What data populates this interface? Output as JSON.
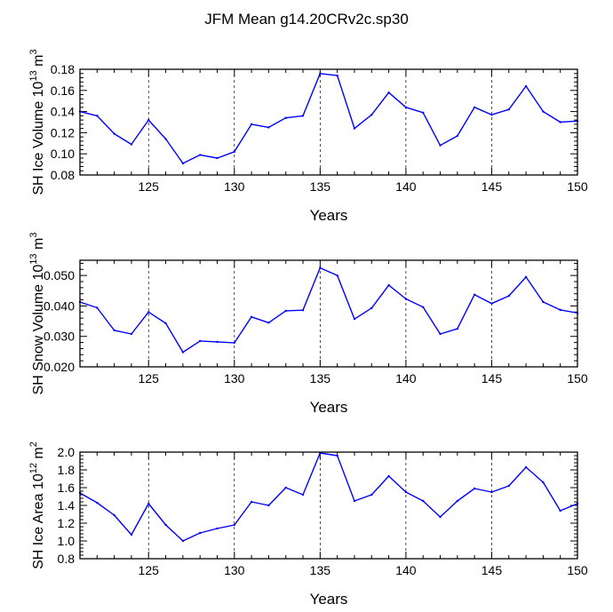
{
  "figure": {
    "title": "JFM Mean g14.20CRv2c.sp30"
  },
  "colors": {
    "line": "#0000ff",
    "axis": "#000000",
    "grid": "#000000",
    "background": "#ffffff"
  },
  "chart_data": [
    {
      "type": "line",
      "name": "ice-volume",
      "ylabel_main": "SH Ice Volume 10",
      "ylabel_exp": "13",
      "ylabel_unit": "m",
      "ylabel_unit_exp": "3",
      "xlabel": "Years",
      "xlim": [
        121,
        150
      ],
      "ylim": [
        0.08,
        0.18
      ],
      "xticks": [
        125,
        130,
        135,
        140,
        145,
        150
      ],
      "xtick_labels": [
        "125",
        "130",
        "135",
        "140",
        "145",
        "150"
      ],
      "yticks": [
        0.08,
        0.1,
        0.12,
        0.14,
        0.16,
        0.18
      ],
      "ytick_labels": [
        "0.08",
        "0.10",
        "0.12",
        "0.14",
        "0.16",
        "0.18"
      ],
      "grid": "vertical dashed at major x ticks",
      "x": [
        121,
        122,
        123,
        124,
        125,
        126,
        127,
        128,
        129,
        130,
        131,
        132,
        133,
        134,
        135,
        136,
        137,
        138,
        139,
        140,
        141,
        142,
        143,
        144,
        145,
        146,
        147,
        148,
        149,
        150
      ],
      "values": [
        0.14,
        0.136,
        0.119,
        0.109,
        0.132,
        0.114,
        0.091,
        0.099,
        0.096,
        0.102,
        0.128,
        0.125,
        0.134,
        0.136,
        0.176,
        0.174,
        0.124,
        0.137,
        0.158,
        0.144,
        0.139,
        0.108,
        0.117,
        0.144,
        0.137,
        0.142,
        0.164,
        0.14,
        0.13,
        0.131
      ]
    },
    {
      "type": "line",
      "name": "snow-volume",
      "ylabel_main": "SH Snow Volume 10",
      "ylabel_exp": "13",
      "ylabel_unit": "m",
      "ylabel_unit_exp": "3",
      "xlabel": "Years",
      "xlim": [
        121,
        150
      ],
      "ylim": [
        0.02,
        0.055
      ],
      "xticks": [
        125,
        130,
        135,
        140,
        145,
        150
      ],
      "xtick_labels": [
        "125",
        "130",
        "135",
        "140",
        "145",
        "150"
      ],
      "yticks": [
        0.02,
        0.03,
        0.04,
        0.05
      ],
      "ytick_labels": [
        "0.020",
        "0.030",
        "0.040",
        "0.050"
      ],
      "grid": "vertical dashed at major x ticks",
      "x": [
        121,
        122,
        123,
        124,
        125,
        126,
        127,
        128,
        129,
        130,
        131,
        132,
        133,
        134,
        135,
        136,
        137,
        138,
        139,
        140,
        141,
        142,
        143,
        144,
        145,
        146,
        147,
        148,
        149,
        150
      ],
      "values": [
        0.0413,
        0.0394,
        0.032,
        0.0308,
        0.038,
        0.0343,
        0.0248,
        0.0285,
        0.0282,
        0.0279,
        0.0364,
        0.0345,
        0.0384,
        0.0386,
        0.0525,
        0.05,
        0.0357,
        0.0393,
        0.0468,
        0.0423,
        0.0396,
        0.0308,
        0.0325,
        0.0437,
        0.0408,
        0.0433,
        0.0495,
        0.0413,
        0.0387,
        0.0377
      ]
    },
    {
      "type": "line",
      "name": "ice-area",
      "ylabel_main": "SH Ice Area 10",
      "ylabel_exp": "12",
      "ylabel_unit": "m",
      "ylabel_unit_exp": "2",
      "xlabel": "Years",
      "xlim": [
        121,
        150
      ],
      "ylim": [
        0.8,
        2.0
      ],
      "xticks": [
        125,
        130,
        135,
        140,
        145,
        150
      ],
      "xtick_labels": [
        "125",
        "130",
        "135",
        "140",
        "145",
        "150"
      ],
      "yticks": [
        0.8,
        1.0,
        1.2,
        1.4,
        1.6,
        1.8,
        2.0
      ],
      "ytick_labels": [
        "0.8",
        "1.0",
        "1.2",
        "1.4",
        "1.6",
        "1.8",
        "2.0"
      ],
      "grid": "vertical dashed at major x ticks",
      "x": [
        121,
        122,
        123,
        124,
        125,
        126,
        127,
        128,
        129,
        130,
        131,
        132,
        133,
        134,
        135,
        136,
        137,
        138,
        139,
        140,
        141,
        142,
        143,
        144,
        145,
        146,
        147,
        148,
        149,
        150
      ],
      "values": [
        1.54,
        1.43,
        1.29,
        1.07,
        1.42,
        1.18,
        1.0,
        1.09,
        1.14,
        1.18,
        1.44,
        1.4,
        1.6,
        1.52,
        1.99,
        1.96,
        1.45,
        1.52,
        1.73,
        1.55,
        1.45,
        1.27,
        1.45,
        1.59,
        1.55,
        1.62,
        1.83,
        1.66,
        1.34,
        1.42
      ]
    }
  ]
}
